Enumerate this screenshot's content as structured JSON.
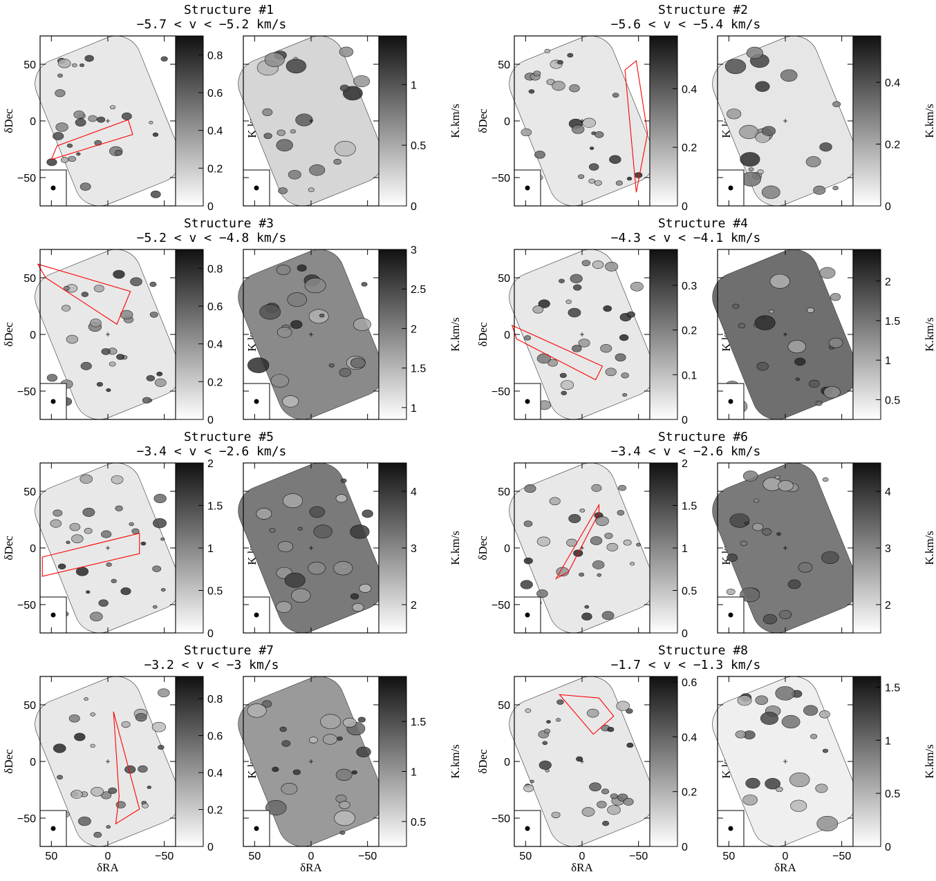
{
  "chart_data": [
    {
      "type": "heatmap",
      "title": "Structure #1",
      "subtitle": "−5.7 < v < −5.2 km/s",
      "xlabel": "",
      "ylabel": "δDec",
      "xlim": [
        60,
        -60
      ],
      "ylim": [
        -75,
        75
      ],
      "xticks": [
        "50",
        "0",
        "−50"
      ],
      "yticks": [
        "50",
        "0",
        "−50"
      ],
      "colorbars": [
        {
          "label": "K.km/s",
          "ticks": [
            "0",
            "0.2",
            "0.4",
            "0.6",
            "0.8"
          ],
          "range": [
            0,
            0.9
          ]
        },
        {
          "label": "K.km/s",
          "ticks": [
            "0",
            "0.5",
            "1"
          ],
          "range": [
            0,
            1.4
          ]
        }
      ]
    },
    {
      "type": "heatmap",
      "title": "Structure #2",
      "subtitle": "−5.6 < v < −5.4 km/s",
      "xlabel": "",
      "ylabel": "δDec",
      "xlim": [
        60,
        -60
      ],
      "ylim": [
        -75,
        75
      ],
      "xticks": [
        "50",
        "0",
        "−50"
      ],
      "yticks": [
        "50",
        "0",
        "−50"
      ],
      "colorbars": [
        {
          "label": "K.km/s",
          "ticks": [
            "0",
            "0.2",
            "0.4"
          ],
          "range": [
            0,
            0.58
          ]
        },
        {
          "label": "K.km/s",
          "ticks": [
            "0",
            "0.2",
            "0.4"
          ],
          "range": [
            0,
            0.55
          ]
        }
      ]
    },
    {
      "type": "heatmap",
      "title": "Structure #3",
      "subtitle": "−5.2 < v < −4.8 km/s",
      "xlabel": "",
      "ylabel": "δDec",
      "xlim": [
        60,
        -60
      ],
      "ylim": [
        -75,
        75
      ],
      "xticks": [
        "50",
        "0",
        "−50"
      ],
      "yticks": [
        "50",
        "0",
        "−50"
      ],
      "colorbars": [
        {
          "label": "K.km/s",
          "ticks": [
            "0",
            "0.2",
            "0.4",
            "0.6",
            "0.8"
          ],
          "range": [
            0,
            0.9
          ]
        },
        {
          "label": "K.km/s",
          "ticks": [
            "1",
            "1.5",
            "2",
            "2.5",
            "3"
          ],
          "range": [
            0.85,
            3
          ]
        }
      ]
    },
    {
      "type": "heatmap",
      "title": "Structure #4",
      "subtitle": "−4.3 < v < −4.1 km/s",
      "xlabel": "",
      "ylabel": "δDec",
      "xlim": [
        60,
        -60
      ],
      "ylim": [
        -75,
        75
      ],
      "xticks": [
        "50",
        "0",
        "−50"
      ],
      "yticks": [
        "50",
        "0",
        "−50"
      ],
      "colorbars": [
        {
          "label": "K.km/s",
          "ticks": [
            "0",
            "0.1",
            "0.2",
            "0.3"
          ],
          "range": [
            0,
            0.38
          ]
        },
        {
          "label": "K.km/s",
          "ticks": [
            "0.5",
            "1",
            "1.5",
            "2"
          ],
          "range": [
            0.25,
            2.4
          ]
        }
      ]
    },
    {
      "type": "heatmap",
      "title": "Structure #5",
      "subtitle": "−3.4 < v < −2.6 km/s",
      "xlabel": "",
      "ylabel": "δDec",
      "xlim": [
        60,
        -60
      ],
      "ylim": [
        -75,
        75
      ],
      "xticks": [
        "50",
        "0",
        "−50"
      ],
      "yticks": [
        "50",
        "0",
        "−50"
      ],
      "colorbars": [
        {
          "label": "K.km/s",
          "ticks": [
            "0",
            "0.5",
            "1",
            "1.5",
            "2"
          ],
          "range": [
            0,
            2
          ]
        },
        {
          "label": "K.km/s",
          "ticks": [
            "2",
            "3",
            "4"
          ],
          "range": [
            1.5,
            4.5
          ]
        }
      ]
    },
    {
      "type": "heatmap",
      "title": "Structure #6",
      "subtitle": "−3.4 < v < −2.6 km/s",
      "xlabel": "",
      "ylabel": "δDec",
      "xlim": [
        60,
        -60
      ],
      "ylim": [
        -75,
        75
      ],
      "xticks": [
        "50",
        "0",
        "−50"
      ],
      "yticks": [
        "50",
        "0",
        "−50"
      ],
      "colorbars": [
        {
          "label": "K.km/s",
          "ticks": [
            "0",
            "0.5",
            "1",
            "1.5",
            "2"
          ],
          "range": [
            0,
            2
          ]
        },
        {
          "label": "K.km/s",
          "ticks": [
            "2",
            "3",
            "4"
          ],
          "range": [
            1.5,
            4.5
          ]
        }
      ]
    },
    {
      "type": "heatmap",
      "title": "Structure #7",
      "subtitle": "−3.2 < v < −3 km/s",
      "xlabel": "δRA",
      "ylabel": "δDec",
      "xlim": [
        60,
        -60
      ],
      "ylim": [
        -75,
        75
      ],
      "xticks": [
        "50",
        "0",
        "−50"
      ],
      "yticks": [
        "50",
        "0",
        "−50"
      ],
      "colorbars": [
        {
          "label": "K.km/s",
          "ticks": [
            "0",
            "0.2",
            "0.4",
            "0.6",
            "0.8"
          ],
          "range": [
            0,
            0.92
          ]
        },
        {
          "label": "K.km/s",
          "ticks": [
            "0.5",
            "1",
            "1.5"
          ],
          "range": [
            0.25,
            1.95
          ]
        }
      ]
    },
    {
      "type": "heatmap",
      "title": "Structure #8",
      "subtitle": "−1.7 < v < −1.3 km/s",
      "xlabel": "δRA",
      "ylabel": "δDec",
      "xlim": [
        60,
        -60
      ],
      "ylim": [
        -75,
        75
      ],
      "xticks": [
        "50",
        "0",
        "−50"
      ],
      "yticks": [
        "50",
        "0",
        "−50"
      ],
      "colorbars": [
        {
          "label": "K.km/s",
          "ticks": [
            "0",
            "0.2",
            "0.4",
            "0.6"
          ],
          "range": [
            0,
            0.62
          ]
        },
        {
          "label": "K.km/s",
          "ticks": [
            "0",
            "0.5",
            "1",
            "1.5"
          ],
          "range": [
            0,
            1.6
          ]
        }
      ]
    }
  ],
  "colors": {
    "frame": "#000000",
    "box": "#ff0000",
    "map_light": "#f2f2f2",
    "map_dark": "#1a1a1a"
  }
}
